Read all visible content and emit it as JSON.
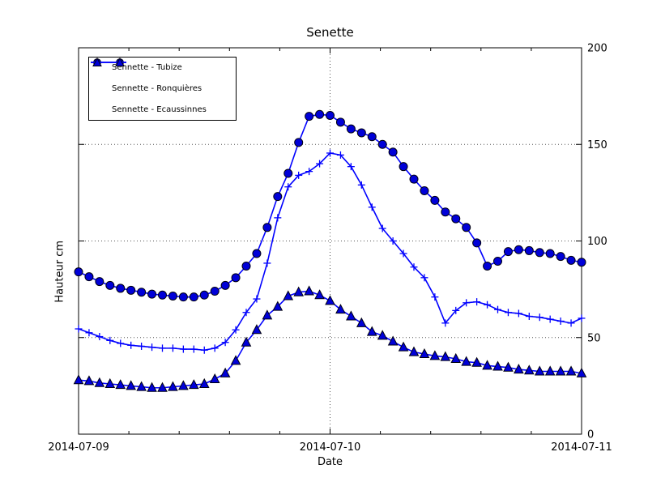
{
  "title": "Senette",
  "xlabel": "Date",
  "ylabel": "Hauteur cm",
  "chart_data": {
    "type": "line",
    "title": "Senette",
    "xlabel": "Date",
    "ylabel": "Hauteur cm",
    "x_start": "2014-07-09 00:00",
    "x_step_hours": 1,
    "x_ticks": [
      "2014-07-09",
      "2014-07-10",
      "2014-07-11"
    ],
    "x_tick_hours": [
      0,
      24,
      48
    ],
    "x_minor_tick_step_hours": 4.8,
    "y_ticks": [
      0,
      50,
      100,
      150,
      200
    ],
    "ylim": [
      0,
      200
    ],
    "xlim_hours": [
      0,
      48
    ],
    "grid": "dotted",
    "grid_y_values": [
      50,
      100,
      150
    ],
    "grid_x_hours": [
      24
    ],
    "legend_position": "upper left",
    "line_color": "#0000ff",
    "marker_fill": "#0000d8",
    "marker_edge": "#000010",
    "series": [
      {
        "name": "Sennette - Tubize",
        "marker": "circle",
        "values": [
          84,
          81.5,
          79,
          77,
          75.5,
          74.5,
          73.5,
          72.5,
          72,
          71.5,
          71,
          71,
          72,
          74,
          77,
          81,
          87,
          93.5,
          107,
          123,
          135,
          151,
          164.5,
          165.5,
          165,
          161.5,
          158,
          156,
          154,
          150,
          146,
          138.5,
          132,
          126,
          121,
          115,
          111.5,
          107,
          99,
          87,
          89.5,
          94.5,
          95.5,
          95,
          94,
          93.5,
          92,
          90,
          89
        ]
      },
      {
        "name": "Sennette - Ronquières",
        "marker": "plus",
        "values": [
          54.5,
          52.5,
          50.5,
          48.5,
          47,
          46,
          45.5,
          45,
          44.5,
          44.5,
          44,
          44,
          43.5,
          44.5,
          47.5,
          54,
          63,
          70,
          88.5,
          112,
          128,
          134,
          136,
          140,
          145.5,
          144.5,
          138.5,
          129,
          117.5,
          106.5,
          100,
          93.5,
          86.5,
          81,
          71,
          57.5,
          64,
          68,
          68.5,
          67,
          64.5,
          63,
          62.5,
          61,
          60.5,
          59.5,
          58.5,
          57.5,
          60
        ]
      },
      {
        "name": "Sennette - Ecaussinnes",
        "marker": "triangle",
        "values": [
          28,
          27.5,
          26.5,
          26,
          25.5,
          25,
          24.5,
          24,
          24,
          24.5,
          25,
          25.5,
          26,
          28.5,
          31.5,
          38,
          47.5,
          54,
          61.5,
          66,
          71.5,
          73.5,
          74,
          72,
          69,
          64.5,
          61,
          57.5,
          53,
          51,
          48,
          45,
          42.5,
          41.5,
          40.5,
          40,
          39,
          37.5,
          37,
          35.5,
          35,
          34.5,
          33.5,
          33,
          32.5,
          32.5,
          32.5,
          32.5,
          31.5
        ]
      }
    ]
  }
}
